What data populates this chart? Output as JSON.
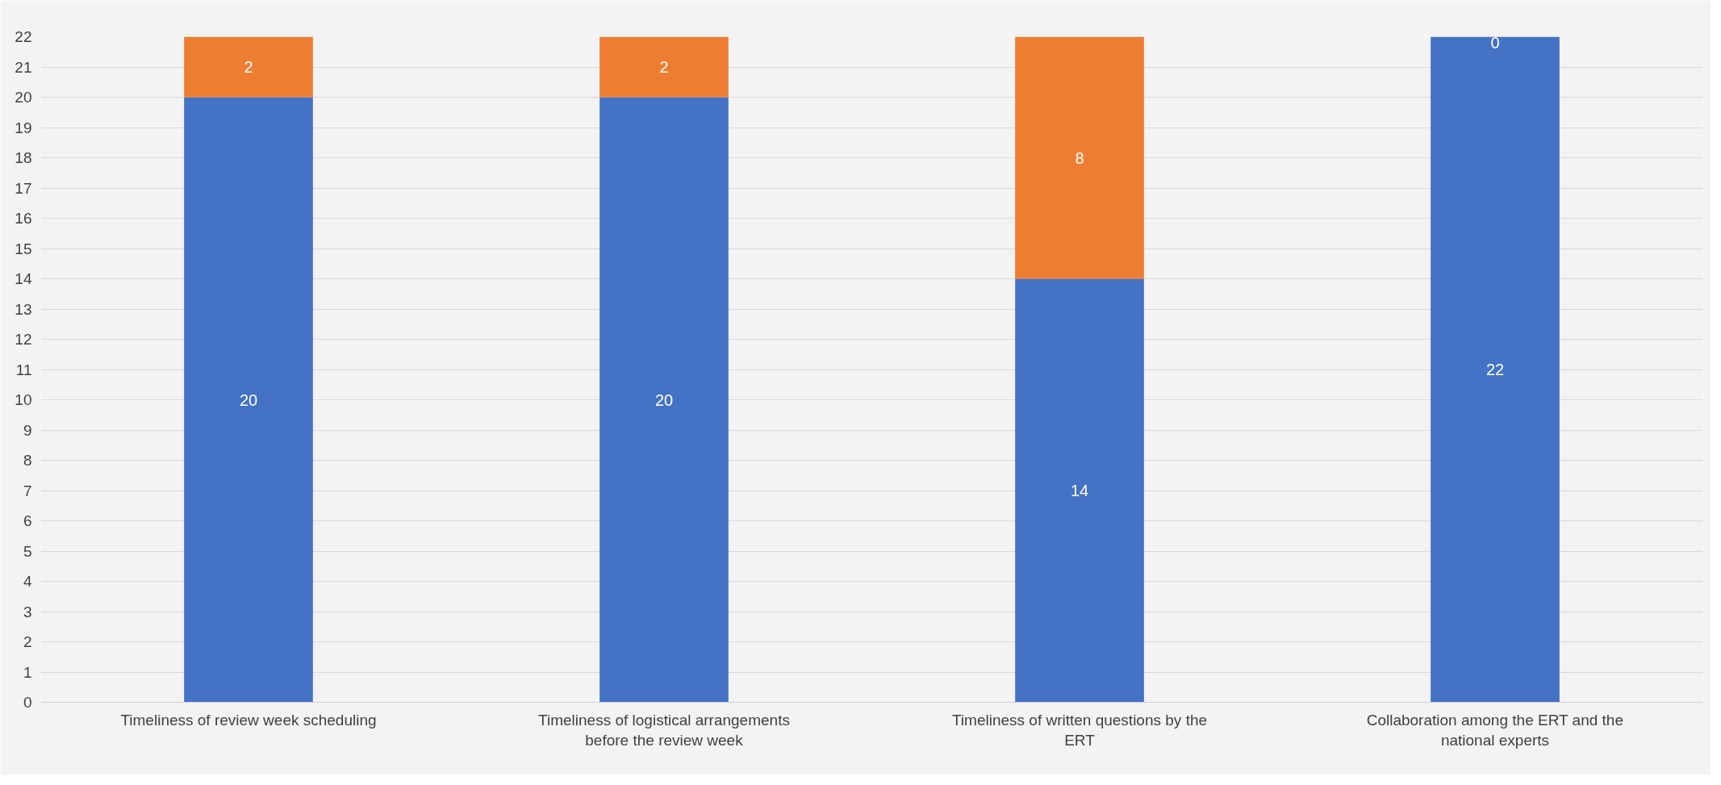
{
  "chart_data": {
    "type": "bar",
    "stacked": true,
    "categories": [
      "Timeliness of review week scheduling",
      "Timeliness of logistical arrangements before the review week",
      "Timeliness of written questions by the ERT",
      "Collaboration among the ERT and the national experts"
    ],
    "series": [
      {
        "color": "#4472c4",
        "values": [
          20,
          20,
          14,
          22
        ]
      },
      {
        "color": "#ed7d31",
        "values": [
          2,
          2,
          8,
          0
        ]
      }
    ],
    "ylim": [
      0,
      22
    ],
    "yticks": [
      0,
      1,
      2,
      3,
      4,
      5,
      6,
      7,
      8,
      9,
      10,
      11,
      12,
      13,
      14,
      15,
      16,
      17,
      18,
      19,
      20,
      21,
      22
    ],
    "grid": "y",
    "data_labels": true
  }
}
